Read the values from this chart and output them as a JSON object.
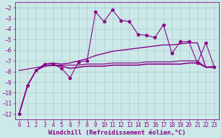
{
  "background_color": "#cce8e8",
  "grid_color": "#aacccc",
  "line_color": "#880088",
  "marker_color": "#880088",
  "xlabel": "Windchill (Refroidissement éolien,°C)",
  "xlabel_fontsize": 6.5,
  "tick_fontsize": 5.5,
  "xlim": [
    -0.5,
    23.5
  ],
  "ylim": [
    -12.5,
    -1.5
  ],
  "yticks": [
    -12,
    -11,
    -10,
    -9,
    -8,
    -7,
    -6,
    -5,
    -4,
    -3,
    -2
  ],
  "xticks": [
    0,
    1,
    2,
    3,
    4,
    5,
    6,
    7,
    8,
    9,
    10,
    11,
    12,
    13,
    14,
    15,
    16,
    17,
    18,
    19,
    20,
    21,
    22,
    23
  ],
  "series": [
    {
      "x": [
        0,
        1,
        2,
        3,
        4,
        5,
        6,
        7,
        8,
        9,
        10,
        11,
        12,
        13,
        14,
        15,
        16,
        17,
        18,
        19,
        20,
        21,
        22,
        23
      ],
      "y": [
        -12,
        -9.3,
        -7.9,
        -7.3,
        -7.3,
        -7.7,
        -8.6,
        -7.1,
        -7.0,
        -2.4,
        -3.3,
        -2.2,
        -3.2,
        -3.3,
        -4.5,
        -4.6,
        -4.8,
        -3.6,
        -6.3,
        -5.2,
        -5.2,
        -7.2,
        -5.3,
        -7.6
      ],
      "marker": "*",
      "markersize": 3.5,
      "linewidth": 0.8
    },
    {
      "x": [
        0,
        1,
        2,
        3,
        4,
        5,
        6,
        7,
        8,
        9,
        10,
        11,
        12,
        13,
        14,
        15,
        16,
        17,
        18,
        19,
        20,
        21,
        22,
        23
      ],
      "y": [
        -12,
        -9.3,
        -7.9,
        -7.3,
        -7.2,
        -7.3,
        -7.2,
        -7.0,
        -6.8,
        -6.5,
        -6.3,
        -6.1,
        -6.0,
        -5.9,
        -5.8,
        -5.7,
        -5.6,
        -5.5,
        -5.5,
        -5.4,
        -5.3,
        -5.3,
        -7.6,
        -7.6
      ],
      "marker": null,
      "markersize": 0,
      "linewidth": 1.0
    },
    {
      "x": [
        0,
        1,
        2,
        3,
        4,
        5,
        6,
        7,
        8,
        9,
        10,
        11,
        12,
        13,
        14,
        15,
        16,
        17,
        18,
        19,
        20,
        21,
        22,
        23
      ],
      "y": [
        -12,
        -9.3,
        -7.9,
        -7.5,
        -7.4,
        -7.5,
        -7.7,
        -7.6,
        -7.5,
        -7.5,
        -7.5,
        -7.4,
        -7.4,
        -7.4,
        -7.4,
        -7.3,
        -7.3,
        -7.3,
        -7.3,
        -7.3,
        -7.2,
        -7.2,
        -7.6,
        -7.6
      ],
      "marker": null,
      "markersize": 0,
      "linewidth": 1.2
    },
    {
      "x": [
        0,
        3,
        4,
        5,
        6,
        7,
        8,
        9,
        10,
        11,
        12,
        13,
        14,
        15,
        16,
        17,
        18,
        19,
        20,
        21,
        22,
        23
      ],
      "y": [
        -7.9,
        -7.5,
        -7.4,
        -7.4,
        -7.4,
        -7.4,
        -7.3,
        -7.3,
        -7.3,
        -7.2,
        -7.2,
        -7.2,
        -7.2,
        -7.1,
        -7.1,
        -7.1,
        -7.1,
        -7.0,
        -7.0,
        -7.0,
        -7.6,
        -7.5
      ],
      "marker": null,
      "markersize": 0,
      "linewidth": 0.9
    }
  ]
}
